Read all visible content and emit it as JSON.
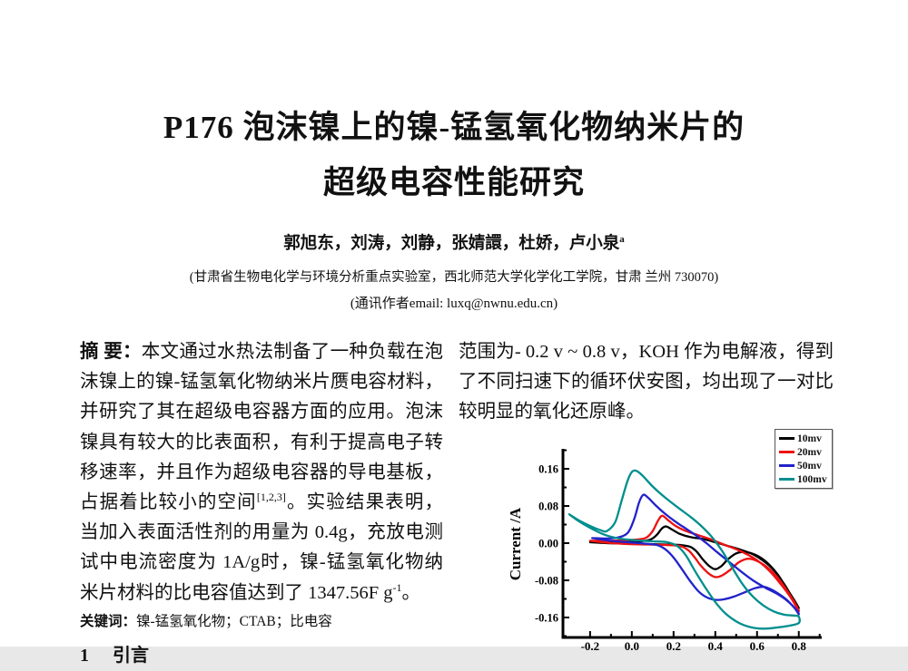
{
  "page": {
    "title_line1": "P176  泡沫镍上的镍-锰氢氧化物纳米片的",
    "title_line2": "超级电容性能研究",
    "authors": "郭旭东，刘涛，刘静，张婧譞，杜娇，卢小泉",
    "authors_sup": "a",
    "affiliation": "(甘肃省生物电化学与环境分析重点实验室，西北师范大学化学化工学院，甘肃 兰州 730070)",
    "email_note": "(通讯作者email: luxq@nwnu.edu.cn)"
  },
  "abstract": {
    "label": "摘 要：",
    "part1": "本文通过水热法制备了一种负载在泡沫镍上的镍-锰氢氧化物纳米片赝电容材料，并研究了其在超级电容器方面的应用。泡沫镍具有较大的比表面积，有利于提高电子转移速率，并且作为超级电容器的导电基板，占据着比较小的空间",
    "ref_sup": "[1,2,3]",
    "part2": "。实验结果表明，当加入表面活性剂的用量为 0.4g，充放电测试中电流密度为 1A/g时，镍-锰氢氧化物纳米片材料的比电容值达到了 1347.56F g",
    "exp_sup": "-1",
    "part3": "。"
  },
  "keywords": {
    "label": "关键词：",
    "text": "镍-锰氢氧化物；CTAB；比电容"
  },
  "section": {
    "number": "1",
    "title": "引言"
  },
  "right_column": {
    "paragraph": "范围为- 0.2 v ~ 0.8 v，KOH 作为电解液，得到了不同扫速下的循环伏安图，均出现了一对比较明显的氧化还原峰。"
  },
  "chart_data": {
    "type": "line",
    "subtype": "cyclic-voltammogram",
    "title": "",
    "xlabel": "",
    "ylabel": "Current /A",
    "xlim": [
      -0.33,
      0.91
    ],
    "ylim": [
      -0.203,
      0.203
    ],
    "grid": false,
    "x_major_ticks": [
      -0.2,
      0.0,
      0.2,
      0.4,
      0.6,
      0.8
    ],
    "x_tick_labels": [
      "-0.2",
      "0.0",
      "0.2",
      "0.4",
      "0.6",
      "0.8"
    ],
    "x_minor_ticks": [
      -0.1,
      0.1,
      0.3,
      0.5,
      0.7,
      0.9
    ],
    "y_major_ticks": [
      0.16,
      0.08,
      0.0,
      -0.08,
      -0.16
    ],
    "y_tick_labels": [
      "0.16",
      "0.08",
      "0.00",
      "-0.08",
      "-0.16"
    ],
    "y_minor_ticks": [
      0.2,
      0.12,
      0.04,
      -0.04,
      -0.12,
      -0.2
    ],
    "legend": {
      "position": "top-right",
      "entries": [
        {
          "label": "10mv",
          "color": "#000000"
        },
        {
          "label": "20mv",
          "color": "#ee1111"
        },
        {
          "label": "50mv",
          "color": "#2222cc"
        },
        {
          "label": "100mv",
          "color": "#008e8e"
        }
      ]
    },
    "series": [
      {
        "name": "10mv",
        "color": "#000000",
        "points": [
          [
            -0.2,
            0.002
          ],
          [
            -0.12,
            0.003
          ],
          [
            -0.04,
            0.003
          ],
          [
            0.04,
            0.004
          ],
          [
            0.09,
            0.008
          ],
          [
            0.12,
            0.018
          ],
          [
            0.145,
            0.032
          ],
          [
            0.165,
            0.036
          ],
          [
            0.19,
            0.03
          ],
          [
            0.23,
            0.02
          ],
          [
            0.28,
            0.013
          ],
          [
            0.34,
            0.009
          ],
          [
            0.4,
            0.002
          ],
          [
            0.46,
            -0.006
          ],
          [
            0.52,
            -0.014
          ],
          [
            0.58,
            -0.024
          ],
          [
            0.63,
            -0.038
          ],
          [
            0.68,
            -0.058
          ],
          [
            0.73,
            -0.088
          ],
          [
            0.77,
            -0.118
          ],
          [
            0.8,
            -0.14
          ],
          [
            0.78,
            -0.124
          ],
          [
            0.74,
            -0.096
          ],
          [
            0.7,
            -0.068
          ],
          [
            0.66,
            -0.047
          ],
          [
            0.62,
            -0.032
          ],
          [
            0.58,
            -0.023
          ],
          [
            0.54,
            -0.019
          ],
          [
            0.5,
            -0.022
          ],
          [
            0.46,
            -0.035
          ],
          [
            0.43,
            -0.049
          ],
          [
            0.4,
            -0.056
          ],
          [
            0.37,
            -0.049
          ],
          [
            0.34,
            -0.035
          ],
          [
            0.31,
            -0.018
          ],
          [
            0.28,
            -0.008
          ],
          [
            0.23,
            -0.004
          ],
          [
            0.16,
            -0.003
          ],
          [
            0.08,
            -0.002
          ],
          [
            -0.02,
            -0.001
          ],
          [
            -0.12,
            0.0
          ],
          [
            -0.2,
            0.002
          ]
        ]
      },
      {
        "name": "20mv",
        "color": "#ee1111",
        "points": [
          [
            -0.2,
            0.005
          ],
          [
            -0.12,
            0.005
          ],
          [
            -0.04,
            0.006
          ],
          [
            0.03,
            0.008
          ],
          [
            0.07,
            0.012
          ],
          [
            0.1,
            0.026
          ],
          [
            0.125,
            0.048
          ],
          [
            0.145,
            0.059
          ],
          [
            0.17,
            0.051
          ],
          [
            0.21,
            0.037
          ],
          [
            0.26,
            0.026
          ],
          [
            0.32,
            0.017
          ],
          [
            0.38,
            0.008
          ],
          [
            0.44,
            -0.003
          ],
          [
            0.5,
            -0.013
          ],
          [
            0.56,
            -0.026
          ],
          [
            0.61,
            -0.04
          ],
          [
            0.66,
            -0.06
          ],
          [
            0.71,
            -0.086
          ],
          [
            0.76,
            -0.116
          ],
          [
            0.8,
            -0.146
          ],
          [
            0.78,
            -0.128
          ],
          [
            0.74,
            -0.1
          ],
          [
            0.7,
            -0.075
          ],
          [
            0.66,
            -0.056
          ],
          [
            0.62,
            -0.043
          ],
          [
            0.58,
            -0.035
          ],
          [
            0.55,
            -0.034
          ],
          [
            0.51,
            -0.042
          ],
          [
            0.47,
            -0.058
          ],
          [
            0.43,
            -0.07
          ],
          [
            0.4,
            -0.073
          ],
          [
            0.37,
            -0.066
          ],
          [
            0.33,
            -0.048
          ],
          [
            0.3,
            -0.03
          ],
          [
            0.27,
            -0.015
          ],
          [
            0.23,
            -0.006
          ],
          [
            0.16,
            -0.004
          ],
          [
            0.08,
            -0.003
          ],
          [
            -0.02,
            -0.002
          ],
          [
            -0.12,
            0.001
          ],
          [
            -0.2,
            0.005
          ]
        ]
      },
      {
        "name": "50mv",
        "color": "#2222cc",
        "points": [
          [
            -0.19,
            0.011
          ],
          [
            -0.13,
            0.01
          ],
          [
            -0.07,
            0.012
          ],
          [
            -0.02,
            0.022
          ],
          [
            0.01,
            0.05
          ],
          [
            0.035,
            0.088
          ],
          [
            0.055,
            0.104
          ],
          [
            0.08,
            0.097
          ],
          [
            0.115,
            0.081
          ],
          [
            0.16,
            0.063
          ],
          [
            0.21,
            0.046
          ],
          [
            0.26,
            0.031
          ],
          [
            0.31,
            0.016
          ],
          [
            0.36,
            -0.001
          ],
          [
            0.41,
            -0.02
          ],
          [
            0.46,
            -0.038
          ],
          [
            0.52,
            -0.06
          ],
          [
            0.58,
            -0.08
          ],
          [
            0.64,
            -0.096
          ],
          [
            0.7,
            -0.11
          ],
          [
            0.75,
            -0.126
          ],
          [
            0.79,
            -0.144
          ],
          [
            0.8,
            -0.153
          ],
          [
            0.78,
            -0.14
          ],
          [
            0.74,
            -0.121
          ],
          [
            0.7,
            -0.108
          ],
          [
            0.66,
            -0.098
          ],
          [
            0.63,
            -0.094
          ],
          [
            0.59,
            -0.097
          ],
          [
            0.54,
            -0.106
          ],
          [
            0.49,
            -0.115
          ],
          [
            0.44,
            -0.121
          ],
          [
            0.4,
            -0.122
          ],
          [
            0.36,
            -0.117
          ],
          [
            0.32,
            -0.104
          ],
          [
            0.28,
            -0.082
          ],
          [
            0.24,
            -0.056
          ],
          [
            0.2,
            -0.031
          ],
          [
            0.16,
            -0.013
          ],
          [
            0.12,
            -0.004
          ],
          [
            0.06,
            -0.001
          ],
          [
            -0.02,
            0.002
          ],
          [
            -0.1,
            0.005
          ],
          [
            -0.19,
            0.011
          ]
        ]
      },
      {
        "name": "100mv",
        "color": "#008e8e",
        "points": [
          [
            -0.3,
            0.062
          ],
          [
            -0.25,
            0.048
          ],
          [
            -0.2,
            0.037
          ],
          [
            -0.15,
            0.028
          ],
          [
            -0.12,
            0.026
          ],
          [
            -0.08,
            0.045
          ],
          [
            -0.05,
            0.09
          ],
          [
            -0.02,
            0.135
          ],
          [
            0.0,
            0.153
          ],
          [
            0.02,
            0.156
          ],
          [
            0.05,
            0.146
          ],
          [
            0.1,
            0.122
          ],
          [
            0.16,
            0.098
          ],
          [
            0.22,
            0.077
          ],
          [
            0.28,
            0.057
          ],
          [
            0.33,
            0.038
          ],
          [
            0.38,
            0.015
          ],
          [
            0.43,
            -0.015
          ],
          [
            0.48,
            -0.052
          ],
          [
            0.53,
            -0.088
          ],
          [
            0.58,
            -0.115
          ],
          [
            0.63,
            -0.134
          ],
          [
            0.68,
            -0.147
          ],
          [
            0.73,
            -0.154
          ],
          [
            0.78,
            -0.156
          ],
          [
            0.8,
            -0.158
          ],
          [
            0.8,
            -0.172
          ],
          [
            0.75,
            -0.178
          ],
          [
            0.69,
            -0.182
          ],
          [
            0.63,
            -0.184
          ],
          [
            0.57,
            -0.181
          ],
          [
            0.51,
            -0.171
          ],
          [
            0.45,
            -0.152
          ],
          [
            0.4,
            -0.127
          ],
          [
            0.35,
            -0.094
          ],
          [
            0.3,
            -0.058
          ],
          [
            0.26,
            -0.027
          ],
          [
            0.22,
            -0.007
          ],
          [
            0.17,
            0.002
          ],
          [
            0.1,
            0.004
          ],
          [
            0.02,
            0.006
          ],
          [
            -0.06,
            0.01
          ],
          [
            -0.13,
            0.018
          ],
          [
            -0.2,
            0.033
          ],
          [
            -0.26,
            0.049
          ],
          [
            -0.3,
            0.062
          ]
        ]
      }
    ]
  }
}
